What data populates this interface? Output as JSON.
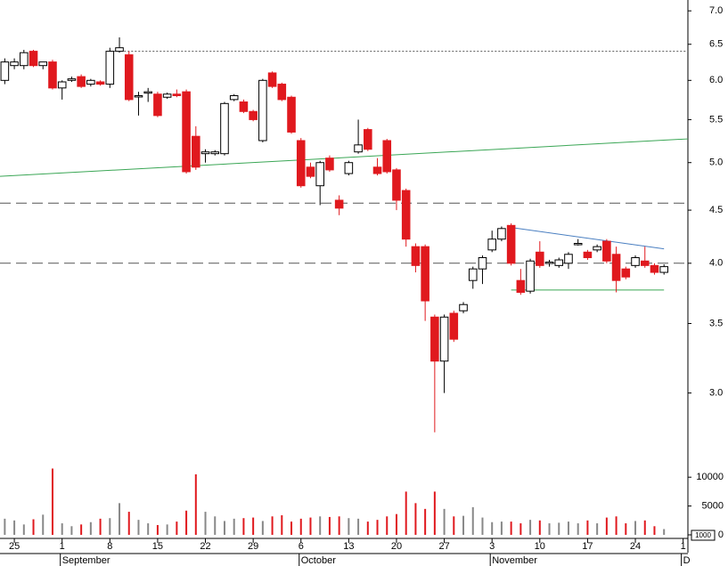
{
  "chart_data": {
    "type": "candlestick",
    "open": [
      6.0,
      6.2,
      6.2,
      6.4,
      6.2,
      6.25,
      5.9,
      6.0,
      6.05,
      5.95,
      5.98,
      5.95,
      6.4,
      6.35,
      5.8,
      5.85,
      5.82,
      5.78,
      5.82,
      5.85,
      5.3,
      5.1,
      5.1,
      5.1,
      5.75,
      5.72,
      5.6,
      5.25,
      6.1,
      5.95,
      5.78,
      5.25,
      4.95,
      4.75,
      5.05,
      4.6,
      4.88,
      5.12,
      5.38,
      4.95,
      5.25,
      4.92,
      4.7,
      4.15,
      4.15,
      3.55,
      3.22,
      3.58,
      3.6,
      3.85,
      3.95,
      4.12,
      4.22,
      4.35,
      3.85,
      3.76,
      4.1,
      4.0,
      3.98,
      4.0,
      4.18,
      4.1,
      4.12,
      4.2,
      4.08,
      3.95,
      3.98,
      4.02,
      3.98,
      3.92
    ],
    "high": [
      6.3,
      6.3,
      6.42,
      6.42,
      6.25,
      6.28,
      6.0,
      6.05,
      6.08,
      6.02,
      6.0,
      6.45,
      6.6,
      6.4,
      5.85,
      5.9,
      5.85,
      5.84,
      5.88,
      5.88,
      5.42,
      5.15,
      5.14,
      5.72,
      5.82,
      5.75,
      5.62,
      6.02,
      6.12,
      5.97,
      5.8,
      5.28,
      5.0,
      5.02,
      5.08,
      4.65,
      5.02,
      5.5,
      5.4,
      5.05,
      5.27,
      4.94,
      4.72,
      4.18,
      4.17,
      3.57,
      3.57,
      3.6,
      3.67,
      3.97,
      4.07,
      4.3,
      4.34,
      4.37,
      3.95,
      4.04,
      4.2,
      4.03,
      4.05,
      4.1,
      4.22,
      4.12,
      4.17,
      4.22,
      4.15,
      3.97,
      4.07,
      4.15,
      4.0,
      3.99
    ],
    "low": [
      5.95,
      6.15,
      6.15,
      6.18,
      6.15,
      5.88,
      5.75,
      5.98,
      5.9,
      5.92,
      5.93,
      5.9,
      6.38,
      5.73,
      5.55,
      5.72,
      5.53,
      5.76,
      5.78,
      4.88,
      4.92,
      5.0,
      5.08,
      5.08,
      5.73,
      5.58,
      5.48,
      5.23,
      5.9,
      5.73,
      5.33,
      4.73,
      4.83,
      4.55,
      4.9,
      4.45,
      4.86,
      5.1,
      5.13,
      4.86,
      4.88,
      4.5,
      4.15,
      3.92,
      3.52,
      2.75,
      3.0,
      3.36,
      3.58,
      3.78,
      3.82,
      4.1,
      4.2,
      3.98,
      3.73,
      3.74,
      3.96,
      3.97,
      3.96,
      3.95,
      4.16,
      4.03,
      4.1,
      4.0,
      3.75,
      3.86,
      3.96,
      3.96,
      3.9,
      3.9
    ],
    "close": [
      6.25,
      6.25,
      6.38,
      6.2,
      6.25,
      5.9,
      5.98,
      6.02,
      5.92,
      6.0,
      5.95,
      6.4,
      6.45,
      5.75,
      5.8,
      5.85,
      5.55,
      5.82,
      5.8,
      4.9,
      4.95,
      5.12,
      5.12,
      5.7,
      5.8,
      5.6,
      5.5,
      6.0,
      5.92,
      5.75,
      5.35,
      4.75,
      4.85,
      5.0,
      4.92,
      4.52,
      5.0,
      5.2,
      5.15,
      4.88,
      4.9,
      4.6,
      4.22,
      3.98,
      3.68,
      3.22,
      3.55,
      3.38,
      3.65,
      3.95,
      4.05,
      4.22,
      4.32,
      4.0,
      3.75,
      4.02,
      3.98,
      4.01,
      4.03,
      4.08,
      4.18,
      4.05,
      4.15,
      4.02,
      3.85,
      3.88,
      4.05,
      3.98,
      3.92,
      3.97
    ],
    "volume": [
      2800,
      2500,
      1800,
      2700,
      3500,
      11500,
      2000,
      1500,
      1800,
      2200,
      2800,
      2900,
      5500,
      4000,
      2600,
      2000,
      1700,
      1800,
      2300,
      4200,
      10500,
      4000,
      3200,
      2400,
      2800,
      2900,
      3000,
      2400,
      3200,
      3400,
      2300,
      2800,
      3000,
      3200,
      3100,
      3200,
      2900,
      2800,
      2300,
      2600,
      3200,
      3600,
      7500,
      5500,
      4500,
      7500,
      4500,
      3200,
      3300,
      4800,
      3000,
      2200,
      2300,
      2300,
      2000,
      2600,
      2500,
      2000,
      2100,
      2300,
      2000,
      2500,
      2000,
      3000,
      3200,
      2000,
      2400,
      2500,
      1500,
      1000
    ],
    "up_color": "#ffffff",
    "down_color": "#e0191e",
    "volume_up_color": "#888888",
    "volume_down_color": "#e0191e",
    "log_scale": true,
    "xlim": [
      -0.5,
      71.5
    ],
    "xticks": [
      {
        "value": 1,
        "label": "25"
      },
      {
        "value": 6,
        "label": "1"
      },
      {
        "value": 11,
        "label": "8"
      },
      {
        "value": 16,
        "label": "15"
      },
      {
        "value": 21,
        "label": "22"
      },
      {
        "value": 26,
        "label": "29"
      },
      {
        "value": 31,
        "label": "6"
      },
      {
        "value": 36,
        "label": "13"
      },
      {
        "value": 41,
        "label": "20"
      },
      {
        "value": 46,
        "label": "27"
      },
      {
        "value": 51,
        "label": "3"
      },
      {
        "value": 56,
        "label": "10"
      },
      {
        "value": 61,
        "label": "17"
      },
      {
        "value": 66,
        "label": "24"
      },
      {
        "value": 71,
        "label": "1"
      }
    ],
    "months": [
      {
        "value": 6,
        "label": "September"
      },
      {
        "value": 31,
        "label": "October"
      },
      {
        "value": 51,
        "label": "November"
      },
      {
        "value": 71,
        "label": "D"
      }
    ],
    "ylim": [
      2.98,
      7.1
    ],
    "yticks": [
      {
        "value": 3,
        "label": "3.0"
      },
      {
        "value": 3.5,
        "label": "3.5"
      },
      {
        "value": 4,
        "label": "4.0"
      },
      {
        "value": 4.5,
        "label": "4.5"
      },
      {
        "value": 5,
        "label": "5.0"
      },
      {
        "value": 5.5,
        "label": "5.5"
      },
      {
        "value": 6,
        "label": "6.0"
      },
      {
        "value": 6.5,
        "label": "6.5"
      },
      {
        "value": 7,
        "label": "7.0"
      }
    ],
    "volume_lim": [
      0,
      12500
    ],
    "volume_ticks": [
      0,
      5000,
      10000
    ],
    "volume_unit_label": "1000",
    "lines": [
      {
        "x1": 11,
        "y1": 6.4,
        "x2": 71.5,
        "y2": 6.4,
        "color": "#555555",
        "dash": "2 2"
      },
      {
        "x1": -0.5,
        "y1": 4.57,
        "x2": 71.5,
        "y2": 4.57,
        "color": "#555555",
        "dash": "12 6"
      },
      {
        "x1": -0.5,
        "y1": 4.0,
        "x2": 71.5,
        "y2": 4.0,
        "color": "#555555",
        "dash": "12 6"
      },
      {
        "x1": -0.5,
        "y1": 4.85,
        "x2": 71.5,
        "y2": 5.27,
        "color": "#3aa655",
        "dash": "none"
      },
      {
        "x1": 53,
        "y1": 4.33,
        "x2": 69,
        "y2": 4.13,
        "color": "#4a7fc1",
        "dash": "none"
      },
      {
        "x1": 53,
        "y1": 3.77,
        "x2": 69,
        "y2": 3.77,
        "color": "#3aa655",
        "dash": "none"
      }
    ]
  }
}
